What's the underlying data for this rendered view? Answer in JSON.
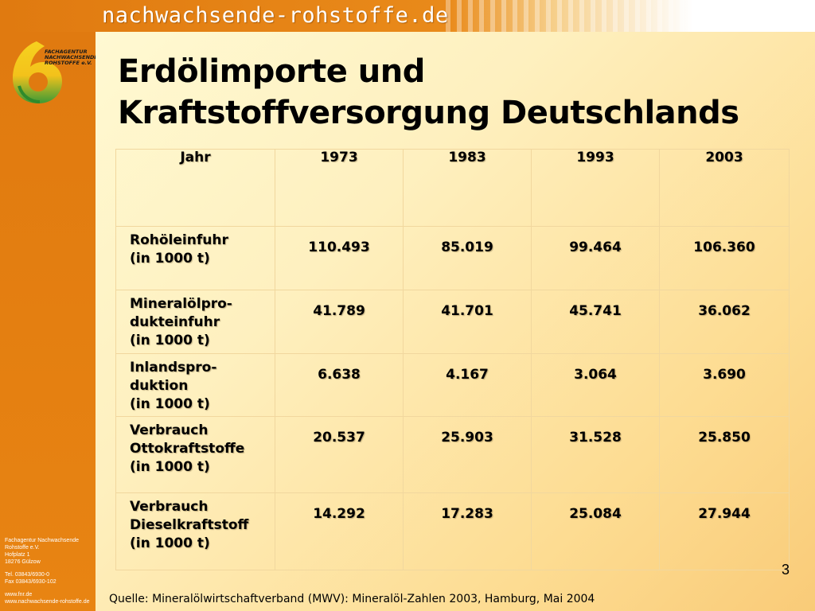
{
  "header": {
    "site_title": "nachwachsende-rohstoffe.de",
    "colors": {
      "orange": "#e07a10",
      "green": "#3c9a36",
      "yellow": "#f3c21b"
    }
  },
  "sidebar": {
    "logo_icon": "fnr-logo-icon",
    "logo_text": [
      "FACHAGENTUR",
      "NACHWACHSENDE",
      "ROHSTOFFE e.V."
    ],
    "contact": {
      "org_line1": "Fachagentur Nachwachsende",
      "org_line2": "Rohstoffe e.V.",
      "street": "Hofplatz 1",
      "city": "18276 Gülzow",
      "tel": "Tel. 03843/6930-0",
      "fax": "Fax 03843/6930-102",
      "web1": "www.fnr.de",
      "web2": "www.nachwachsende-rohstoffe.de"
    }
  },
  "slide": {
    "title_line1": "Erdölimporte und",
    "title_line2": "Kraftstoffversorgung Deutschlands",
    "page_number": "3",
    "source": "Quelle: Mineralölwirtschaftverband (MWV): Mineralöl-Zahlen 2003, Hamburg, Mai 2004"
  },
  "table": {
    "header": [
      "Jahr",
      "1973",
      "1983",
      "1993",
      "2003"
    ],
    "rows": [
      {
        "label": [
          "Rohöleinfuhr",
          "(in 1000 t)"
        ],
        "values": [
          "110.493",
          "85.019",
          "99.464",
          "106.360"
        ]
      },
      {
        "label": [
          "Mineralölpro-",
          "dukteinfuhr",
          "(in 1000 t)"
        ],
        "values": [
          "41.789",
          "41.701",
          "45.741",
          "36.062"
        ]
      },
      {
        "label": [
          "Inlandspro-",
          "duktion",
          "(in 1000 t)"
        ],
        "values": [
          "6.638",
          "4.167",
          "3.064",
          "3.690"
        ]
      },
      {
        "label": [
          "Verbrauch",
          "Ottokraftstoffe",
          "(in 1000 t)"
        ],
        "values": [
          "20.537",
          "25.903",
          "31.528",
          "25.850"
        ]
      },
      {
        "label": [
          "Verbrauch",
          "Dieselkraftstoff",
          "(in 1000 t)"
        ],
        "values": [
          "14.292",
          "17.283",
          "25.084",
          "27.944"
        ]
      }
    ]
  }
}
